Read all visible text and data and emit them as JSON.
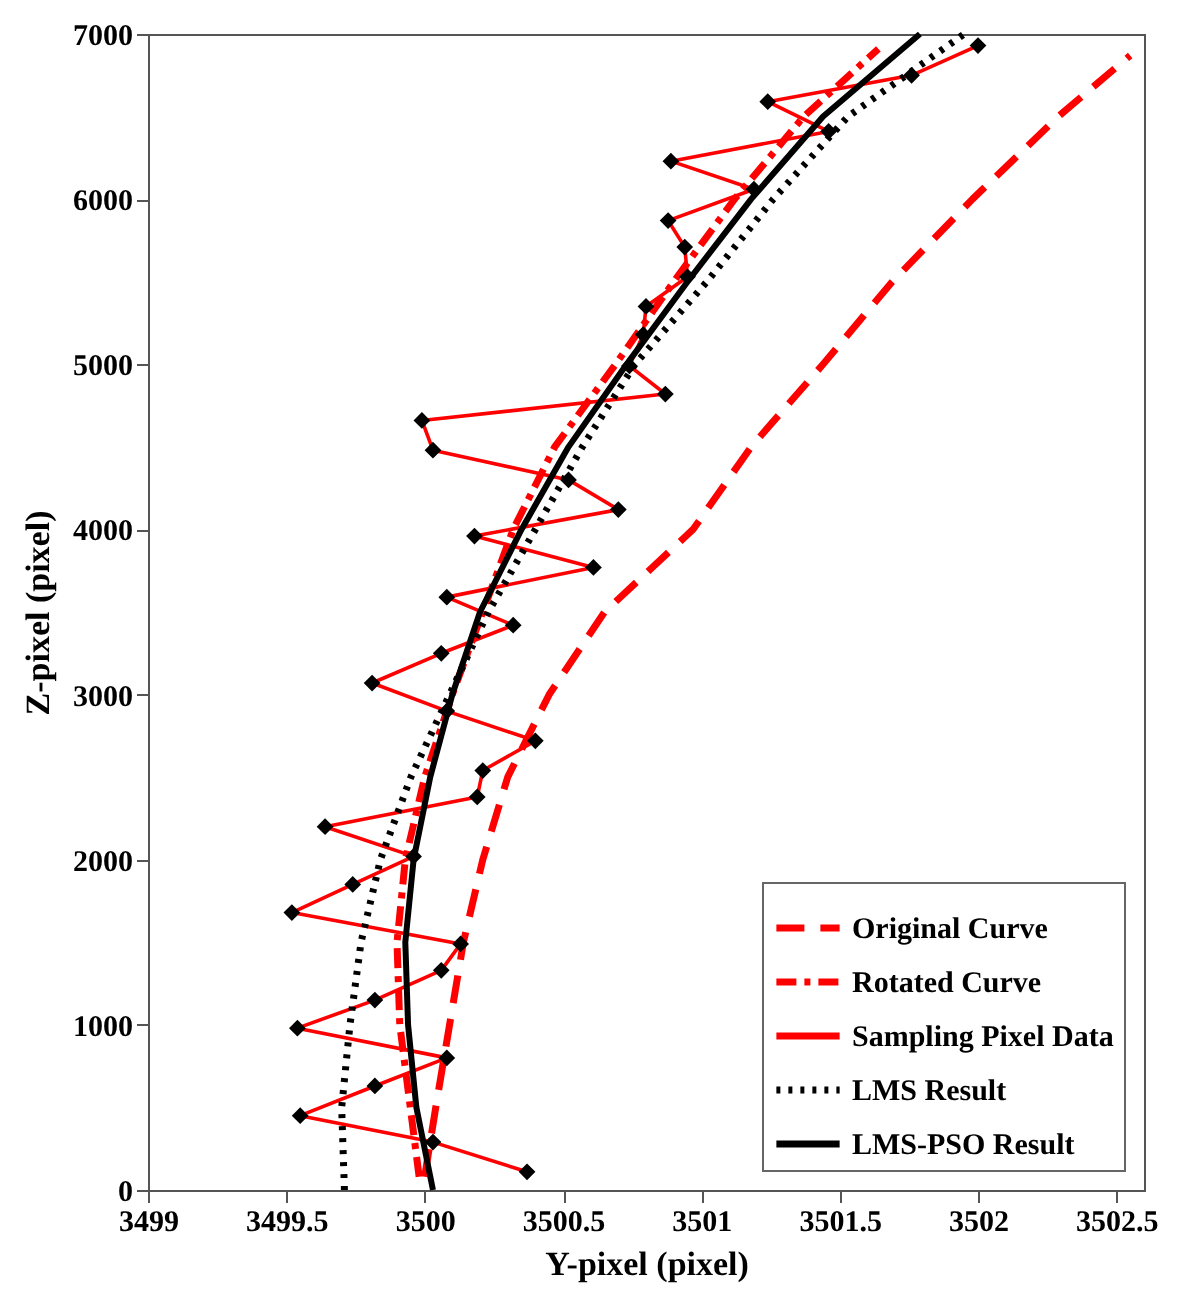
{
  "chart_data": {
    "type": "line",
    "xlabel": "Y-pixel (pixel)",
    "ylabel": "Z-pixel (pixel)",
    "xlim": [
      3499,
      3502.6
    ],
    "ylim": [
      0,
      7000
    ],
    "xticks": [
      3499,
      3499.5,
      3500,
      3500.5,
      3501,
      3501.5,
      3502,
      3502.5
    ],
    "yticks": [
      0,
      1000,
      2000,
      3000,
      4000,
      5000,
      6000,
      7000
    ],
    "grid": false,
    "legend": "bottom right",
    "series": [
      {
        "name": "Original Curve",
        "color": "#ff0000",
        "line_style": "dashed",
        "marker": "none",
        "x": [
          3500.0,
          3500.04,
          3500.09,
          3500.14,
          3500.21,
          3500.3,
          3500.45,
          3500.65,
          3500.97,
          3501.18,
          3501.44,
          3501.69,
          3501.98,
          3502.29,
          3502.55
        ],
        "values": [
          80,
          500,
          1000,
          1500,
          2000,
          2500,
          3000,
          3500,
          4000,
          4500,
          5000,
          5500,
          6000,
          6500,
          6870
        ]
      },
      {
        "name": "Rotated Curve",
        "color": "#ff0000",
        "line_style": "dashdot",
        "marker": "none",
        "x": [
          3499.98,
          3499.91,
          3499.9,
          3499.93,
          3500.0,
          3500.1,
          3500.21,
          3500.32,
          3500.47,
          3500.69,
          3500.9,
          3501.12,
          3501.37,
          3501.64
        ],
        "values": [
          80,
          1000,
          1500,
          2000,
          2500,
          3000,
          3500,
          4000,
          4500,
          5000,
          5500,
          6000,
          6500,
          6910
        ]
      },
      {
        "name": "Sampling Pixel Data",
        "color": "#ff0000",
        "line_style": "solid",
        "marker": "diamond",
        "x": [
          3500.37,
          3500.03,
          3499.55,
          3499.82,
          3500.08,
          3499.54,
          3499.82,
          3500.06,
          3500.13,
          3499.52,
          3499.74,
          3499.96,
          3499.64,
          3500.19,
          3500.21,
          3500.4,
          3500.08,
          3499.81,
          3500.06,
          3500.32,
          3500.08,
          3500.61,
          3500.18,
          3500.7,
          3500.52,
          3500.03,
          3499.99,
          3500.87,
          3500.74,
          3500.79,
          3500.8,
          3500.95,
          3500.94,
          3500.88,
          3501.19,
          3500.89,
          3501.46,
          3501.24,
          3501.76,
          3502.0
        ],
        "values": [
          110,
          290,
          450,
          630,
          800,
          980,
          1150,
          1330,
          1490,
          1680,
          1850,
          2020,
          2200,
          2380,
          2540,
          2720,
          2900,
          3070,
          3250,
          3420,
          3590,
          3770,
          3960,
          4120,
          4300,
          4480,
          4660,
          4820,
          4990,
          5180,
          5350,
          5530,
          5710,
          5870,
          6060,
          6230,
          6410,
          6590,
          6750,
          6930
        ]
      },
      {
        "name": "LMS Result",
        "color": "#000000",
        "line_style": "dotted",
        "marker": "none",
        "x": [
          3499.71,
          3499.7,
          3499.73,
          3499.77,
          3499.84,
          3499.95,
          3500.09,
          3500.23,
          3500.4,
          3500.57,
          3500.76,
          3501.02,
          3501.26,
          3501.53,
          3501.95
        ],
        "values": [
          0,
          500,
          1000,
          1500,
          2000,
          2500,
          3000,
          3500,
          4000,
          4500,
          5000,
          5500,
          6000,
          6500,
          7000
        ]
      },
      {
        "name": "LMS-PSO Result",
        "color": "#000000",
        "line_style": "solid",
        "marker": "none",
        "x": [
          3500.03,
          3499.97,
          3499.94,
          3499.93,
          3499.96,
          3500.02,
          3500.1,
          3500.2,
          3500.35,
          3500.52,
          3500.73,
          3500.95,
          3501.18,
          3501.44,
          3501.79
        ],
        "values": [
          0,
          500,
          1000,
          1500,
          2000,
          2500,
          3000,
          3500,
          4000,
          4500,
          5000,
          5500,
          6000,
          6500,
          7000
        ]
      }
    ]
  }
}
